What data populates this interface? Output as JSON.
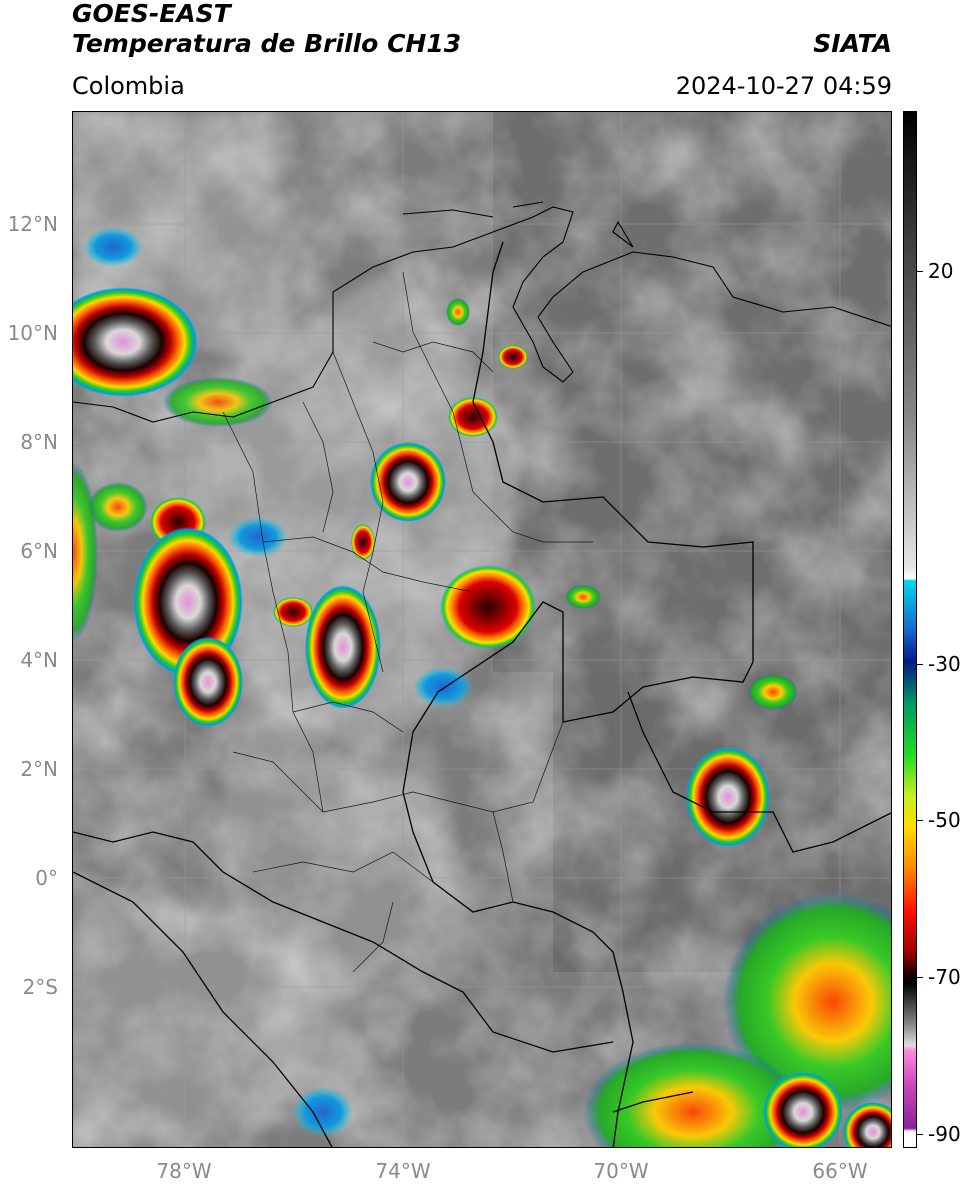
{
  "header": {
    "satellite": "GOES-EAST",
    "product": "Temperatura de Brillo CH13",
    "region": "Colombia",
    "organization": "SIATA",
    "timestamp": "2024-10-27 04:59"
  },
  "map": {
    "lat_ticks": [
      "12°N",
      "10°N",
      "8°N",
      "6°N",
      "4°N",
      "2°N",
      "0°",
      "2°S"
    ],
    "lon_ticks": [
      "78°W",
      "74°W",
      "70°W",
      "66°W"
    ],
    "lon_range": [
      -80,
      -65
    ],
    "lat_range": [
      -4.9,
      14
    ]
  },
  "colorbar": {
    "labels": [
      "20",
      "-30",
      "-50",
      "-70",
      "-90"
    ],
    "range": [
      -92,
      36
    ]
  }
}
